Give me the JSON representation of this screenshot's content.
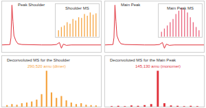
{
  "chart_data": [
    {
      "type": "line",
      "title": "Peak Shoulder",
      "color": "#e0303a",
      "x": [
        0,
        0.5,
        0.8,
        0.9,
        1.0,
        1.1,
        1.2,
        1.4,
        1.6,
        2,
        3,
        4,
        5,
        5.5,
        5.8,
        6.0,
        6.2,
        6.5,
        7,
        8,
        9,
        10
      ],
      "values": [
        2,
        2,
        3,
        20,
        100,
        60,
        25,
        12,
        5,
        3,
        2,
        2,
        2,
        3,
        8,
        -6,
        4,
        1,
        2,
        2,
        2,
        2
      ],
      "xlim": [
        0,
        10
      ],
      "ylim": [
        -15,
        110
      ],
      "grid": false,
      "tick_labels": false
    },
    {
      "type": "bar",
      "title": "Shoulder MS",
      "color": "#f5a23c",
      "x": [
        1,
        2,
        3,
        4,
        5,
        6,
        7,
        8,
        9,
        10,
        11,
        12,
        13,
        14
      ],
      "values": [
        20,
        30,
        35,
        45,
        40,
        55,
        50,
        60,
        58,
        70,
        65,
        75,
        68,
        72
      ],
      "xlim": [
        0,
        15
      ],
      "ylim": [
        0,
        100
      ],
      "grid": false,
      "tick_labels": false
    },
    {
      "type": "line",
      "title": "Main Peak",
      "color": "#e0303a",
      "x": [
        0,
        0.5,
        0.8,
        0.9,
        1.0,
        1.1,
        1.2,
        1.4,
        1.6,
        2,
        3,
        4,
        5,
        5.5,
        5.8,
        6.0,
        6.2,
        6.5,
        7,
        8,
        9,
        10
      ],
      "values": [
        2,
        2,
        3,
        20,
        100,
        60,
        25,
        12,
        5,
        3,
        2,
        2,
        2,
        3,
        8,
        -6,
        4,
        1,
        2,
        2,
        2,
        2
      ],
      "xlim": [
        0,
        10
      ],
      "ylim": [
        -15,
        110
      ],
      "grid": false,
      "tick_labels": false
    },
    {
      "type": "bar",
      "title": "Main Peak MS",
      "color": "#e8607a",
      "x": [
        1,
        2,
        3,
        4,
        5,
        6,
        7,
        8,
        9,
        10,
        11,
        12,
        13,
        14
      ],
      "values": [
        15,
        25,
        35,
        45,
        55,
        70,
        80,
        90,
        85,
        75,
        60,
        45,
        30,
        20
      ],
      "xlim": [
        0,
        15
      ],
      "ylim": [
        0,
        100
      ],
      "grid": false,
      "tick_labels": false
    },
    {
      "type": "bar",
      "title": "Deconvoluted MS for the Shoulder",
      "color": "#f5a23c",
      "x": [
        1,
        2,
        3,
        4,
        5,
        6,
        7,
        8,
        9,
        10,
        11,
        12,
        13,
        14,
        15,
        16,
        17,
        18,
        19
      ],
      "values": [
        5,
        8,
        6,
        10,
        12,
        15,
        20,
        35,
        100,
        40,
        25,
        30,
        18,
        12,
        8,
        10,
        6,
        5,
        4
      ],
      "xlim": [
        0,
        20
      ],
      "ylim": [
        0,
        140
      ],
      "grid": false,
      "tick_labels": false,
      "annotations": [
        {
          "text": "290,520 amu (dimer)",
          "x": 9,
          "y": 100
        }
      ]
    },
    {
      "type": "bar",
      "title": "Deconvoluted MS for the Main Peak",
      "color": "#e0303a",
      "x": [
        1,
        2,
        3,
        4,
        5,
        6,
        7,
        8,
        9,
        10,
        11,
        12,
        13,
        14
      ],
      "values": [
        2,
        3,
        2,
        4,
        3,
        5,
        8,
        100,
        10,
        4,
        3,
        2,
        3,
        2
      ],
      "xlim": [
        0,
        15
      ],
      "ylim": [
        0,
        140
      ],
      "grid": false,
      "tick_labels": false,
      "annotations": [
        {
          "text": "145,130 amu (monomer)",
          "x": 8,
          "y": 100
        }
      ]
    }
  ]
}
